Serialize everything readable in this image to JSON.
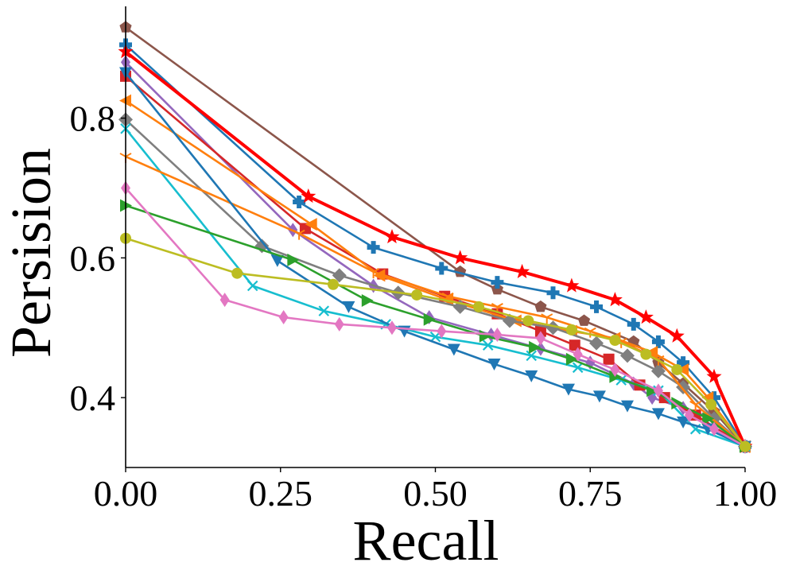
{
  "chart_data": {
    "type": "line",
    "title": "",
    "xlabel": "Recall",
    "ylabel": "Persision",
    "xlim": [
      0.0,
      1.0
    ],
    "ylim": [
      0.3,
      0.96
    ],
    "xticks": [
      0.0,
      0.25,
      0.5,
      0.75,
      1.0
    ],
    "xtick_labels": [
      "0.00",
      "0.25",
      "0.50",
      "0.75",
      "1.00"
    ],
    "yticks": [
      0.4,
      0.6,
      0.8
    ],
    "ytick_labels": [
      "0.4",
      "0.6",
      "0.8"
    ],
    "grid": false,
    "legend": "none",
    "series": [
      {
        "name": "series-brown-pentagon",
        "color": "#8c564b",
        "marker": "pentagon",
        "x": [
          0.0,
          0.54,
          0.6,
          0.67,
          0.74,
          0.82,
          0.86,
          0.9,
          0.95,
          1.0
        ],
        "y": [
          0.93,
          0.58,
          0.555,
          0.53,
          0.51,
          0.48,
          0.45,
          0.42,
          0.38,
          0.33
        ]
      },
      {
        "name": "series-blue-plus",
        "color": "#1f77b4",
        "marker": "plus",
        "x": [
          0.0,
          0.28,
          0.4,
          0.51,
          0.6,
          0.69,
          0.76,
          0.82,
          0.86,
          0.9,
          0.95,
          1.0
        ],
        "y": [
          0.905,
          0.68,
          0.615,
          0.585,
          0.565,
          0.55,
          0.53,
          0.505,
          0.48,
          0.45,
          0.4,
          0.33
        ]
      },
      {
        "name": "series-red-star",
        "color": "#ff0000",
        "marker": "star",
        "x": [
          0.0,
          0.295,
          0.43,
          0.54,
          0.64,
          0.72,
          0.79,
          0.84,
          0.89,
          0.95,
          1.0
        ],
        "y": [
          0.895,
          0.688,
          0.63,
          0.6,
          0.58,
          0.56,
          0.54,
          0.515,
          0.488,
          0.43,
          0.33
        ]
      },
      {
        "name": "series-purple-diamond",
        "color": "#9467bd",
        "marker": "thin_diamond",
        "x": [
          0.0,
          0.27,
          0.4,
          0.49,
          0.59,
          0.67,
          0.75,
          0.82,
          0.85,
          0.9,
          0.95,
          1.0
        ],
        "y": [
          0.88,
          0.64,
          0.56,
          0.515,
          0.49,
          0.47,
          0.45,
          0.42,
          0.4,
          0.385,
          0.37,
          0.33
        ]
      },
      {
        "name": "series-red-square",
        "color": "#d62728",
        "marker": "square",
        "x": [
          0.0,
          0.29,
          0.415,
          0.515,
          0.6,
          0.67,
          0.725,
          0.78,
          0.83,
          0.87,
          0.92,
          1.0
        ],
        "y": [
          0.86,
          0.642,
          0.577,
          0.545,
          0.52,
          0.495,
          0.475,
          0.455,
          0.418,
          0.4,
          0.375,
          0.33
        ]
      },
      {
        "name": "series-orange-triangle",
        "color": "#ff7f0e",
        "marker": "triangle_left",
        "x": [
          0.0,
          0.3,
          0.41,
          0.52,
          0.63,
          0.72,
          0.79,
          0.85,
          0.9,
          0.94,
          1.0
        ],
        "y": [
          0.825,
          0.648,
          0.575,
          0.54,
          0.51,
          0.495,
          0.485,
          0.465,
          0.44,
          0.4,
          0.33
        ]
      },
      {
        "name": "series-gray-diamond",
        "color": "#7f7f7f",
        "marker": "diamond",
        "x": [
          0.0,
          0.22,
          0.345,
          0.44,
          0.54,
          0.62,
          0.69,
          0.76,
          0.81,
          0.86,
          0.9,
          0.95,
          1.0
        ],
        "y": [
          0.798,
          0.617,
          0.575,
          0.55,
          0.53,
          0.51,
          0.5,
          0.478,
          0.46,
          0.438,
          0.415,
          0.37,
          0.33
        ]
      },
      {
        "name": "series-cyan-x",
        "color": "#17becf",
        "marker": "x",
        "x": [
          0.0,
          0.205,
          0.32,
          0.42,
          0.5,
          0.585,
          0.655,
          0.73,
          0.8,
          0.86,
          0.92,
          1.0
        ],
        "y": [
          0.785,
          0.56,
          0.524,
          0.505,
          0.487,
          0.475,
          0.46,
          0.443,
          0.425,
          0.41,
          0.355,
          0.33
        ]
      },
      {
        "name": "series-orange-tri-down",
        "color": "#ff7f0e",
        "marker": "tri_down",
        "x": [
          0.0,
          0.28,
          0.4,
          0.52,
          0.6,
          0.68,
          0.75,
          0.8,
          0.86,
          0.92,
          1.0
        ],
        "y": [
          0.745,
          0.635,
          0.58,
          0.545,
          0.53,
          0.515,
          0.495,
          0.48,
          0.455,
          0.39,
          0.33
        ]
      },
      {
        "name": "series-blue-triangle-down",
        "color": "#1f77b4",
        "marker": "triangle_down",
        "x": [
          0.0,
          0.245,
          0.36,
          0.45,
          0.53,
          0.595,
          0.655,
          0.715,
          0.765,
          0.81,
          0.86,
          0.9,
          0.94,
          1.0
        ],
        "y": [
          0.865,
          0.596,
          0.53,
          0.495,
          0.469,
          0.448,
          0.431,
          0.412,
          0.402,
          0.388,
          0.377,
          0.365,
          0.355,
          0.33
        ]
      },
      {
        "name": "series-green-triangle-right",
        "color": "#2ca02c",
        "marker": "triangle_right",
        "x": [
          0.0,
          0.27,
          0.39,
          0.49,
          0.58,
          0.66,
          0.72,
          0.79,
          0.85,
          0.89,
          0.94,
          1.0
        ],
        "y": [
          0.675,
          0.597,
          0.539,
          0.512,
          0.488,
          0.472,
          0.455,
          0.43,
          0.41,
          0.392,
          0.37,
          0.33
        ]
      },
      {
        "name": "series-pink-thin-diamond",
        "color": "#e377c2",
        "marker": "thin_diamond",
        "x": [
          0.0,
          0.16,
          0.255,
          0.345,
          0.43,
          0.51,
          0.6,
          0.67,
          0.73,
          0.79,
          0.86,
          0.91,
          0.95,
          1.0
        ],
        "y": [
          0.7,
          0.54,
          0.515,
          0.505,
          0.5,
          0.495,
          0.49,
          0.485,
          0.462,
          0.44,
          0.41,
          0.375,
          0.355,
          0.33
        ]
      },
      {
        "name": "series-olive-circle",
        "color": "#bcbd22",
        "marker": "circle",
        "x": [
          0.0,
          0.18,
          0.335,
          0.47,
          0.57,
          0.65,
          0.72,
          0.79,
          0.84,
          0.89,
          0.945,
          1.0
        ],
        "y": [
          0.628,
          0.578,
          0.562,
          0.547,
          0.53,
          0.51,
          0.497,
          0.482,
          0.462,
          0.44,
          0.39,
          0.33
        ]
      }
    ]
  }
}
